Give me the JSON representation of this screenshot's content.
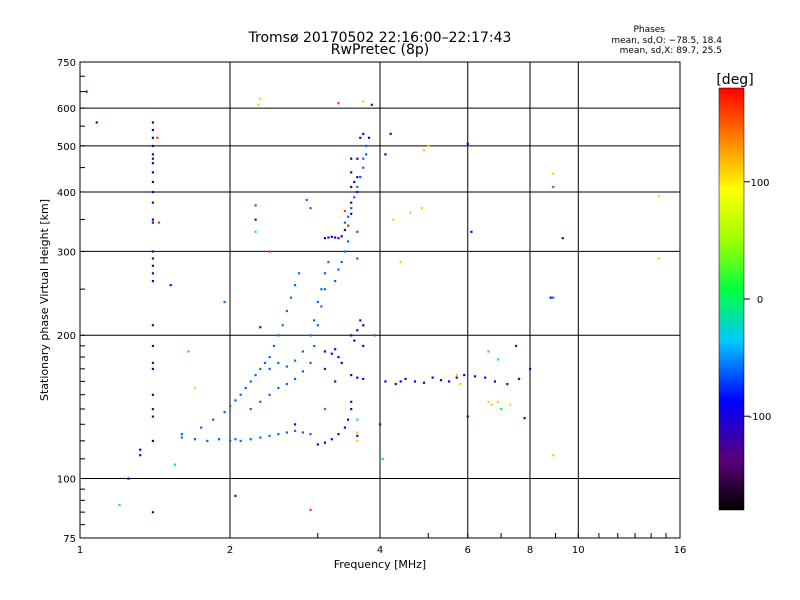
{
  "chart_data": {
    "type": "scatter",
    "title": "Tromsø 20170502 22:16:00–22:17:43",
    "subtitle": "RwPretec (8p)",
    "xlabel": "Frequency [MHz]",
    "ylabel": "Stationary phase Virtual Height [km]",
    "x_scale": "log",
    "y_scale": "log",
    "xlim": [
      1,
      16
    ],
    "ylim": [
      75,
      750
    ],
    "x_ticks": [
      1,
      2,
      4,
      6,
      8,
      10,
      16
    ],
    "y_ticks": [
      75,
      100,
      200,
      300,
      400,
      500,
      600,
      750
    ],
    "grid": true,
    "stats_block": {
      "heading": "Phases",
      "line1": "mean, sd,O: −78.5, 18.4",
      "line2": "mean, sd,X:  89.7, 25.5"
    },
    "colorbar": {
      "label": "[deg]",
      "range": [
        -180,
        180
      ],
      "ticks": [
        100,
        0,
        -100
      ]
    },
    "series": [
      {
        "description_color": "blue traces (O-mode, ~-100 deg)",
        "phase": -100,
        "points": [
          [
            1.4,
            560
          ],
          [
            1.4,
            540
          ],
          [
            1.4,
            520
          ],
          [
            1.4,
            500
          ],
          [
            1.4,
            480
          ],
          [
            1.4,
            460
          ],
          [
            1.4,
            440
          ],
          [
            1.4,
            420
          ],
          [
            1.4,
            400
          ],
          [
            1.4,
            380
          ],
          [
            1.4,
            350
          ],
          [
            1.4,
            300
          ],
          [
            1.4,
            280
          ],
          [
            1.4,
            260
          ],
          [
            1.4,
            210
          ],
          [
            1.4,
            190
          ],
          [
            1.4,
            170
          ],
          [
            1.4,
            150
          ],
          [
            1.4,
            135
          ],
          [
            1.4,
            120
          ],
          [
            1.4,
            85
          ],
          [
            1.03,
            650
          ],
          [
            1.08,
            560
          ],
          [
            1.25,
            100
          ],
          [
            1.32,
            115
          ],
          [
            1.32,
            112
          ],
          [
            1.52,
            255
          ],
          [
            3.0,
            118
          ],
          [
            3.1,
            119
          ],
          [
            3.2,
            121
          ],
          [
            3.3,
            124
          ],
          [
            3.4,
            128
          ],
          [
            3.45,
            133
          ],
          [
            3.5,
            140
          ],
          [
            3.1,
            320
          ],
          [
            3.15,
            321
          ],
          [
            3.2,
            322
          ],
          [
            3.25,
            321
          ],
          [
            3.3,
            320
          ],
          [
            3.35,
            323
          ],
          [
            3.4,
            333
          ],
          [
            3.45,
            340
          ],
          [
            3.5,
            380
          ],
          [
            3.5,
            360
          ],
          [
            3.5,
            410
          ],
          [
            3.5,
            440
          ],
          [
            3.5,
            470
          ],
          [
            3.55,
            420
          ],
          [
            3.6,
            400
          ],
          [
            3.6,
            430
          ],
          [
            3.6,
            470
          ],
          [
            3.65,
            520
          ],
          [
            3.7,
            530
          ],
          [
            3.5,
            200
          ],
          [
            3.55,
            195
          ],
          [
            3.6,
            205
          ],
          [
            3.65,
            215
          ],
          [
            3.7,
            210
          ],
          [
            3.7,
            190
          ],
          [
            3.1,
            185
          ],
          [
            3.2,
            183
          ],
          [
            3.25,
            187
          ],
          [
            3.3,
            180
          ],
          [
            3.35,
            175
          ],
          [
            3.5,
            165
          ],
          [
            3.6,
            163
          ],
          [
            3.7,
            162
          ],
          [
            4.1,
            160
          ],
          [
            4.3,
            158
          ],
          [
            4.5,
            162
          ],
          [
            4.7,
            160
          ],
          [
            4.9,
            159
          ],
          [
            5.1,
            163
          ],
          [
            5.3,
            161
          ],
          [
            5.5,
            160
          ],
          [
            5.7,
            163
          ],
          [
            5.9,
            165
          ],
          [
            6.2,
            164
          ],
          [
            6.5,
            163
          ],
          [
            6.8,
            160
          ],
          [
            7.2,
            158
          ],
          [
            7.6,
            162
          ],
          [
            8.0,
            170
          ],
          [
            4.2,
            530
          ],
          [
            4.1,
            480
          ],
          [
            6.0,
            505
          ],
          [
            6.1,
            330
          ],
          [
            9.3,
            320
          ],
          [
            8.8,
            240
          ],
          [
            7.8,
            134
          ],
          [
            3.8,
            520
          ],
          [
            4.4,
            160
          ]
        ]
      },
      {
        "description_color": "light-blue traces (~-60 deg)",
        "phase": -60,
        "points": [
          [
            1.6,
            122
          ],
          [
            1.7,
            121
          ],
          [
            1.8,
            120
          ],
          [
            1.9,
            121
          ],
          [
            2.0,
            120
          ],
          [
            2.05,
            121
          ],
          [
            2.1,
            120
          ],
          [
            2.2,
            121
          ],
          [
            2.3,
            122
          ],
          [
            2.4,
            123
          ],
          [
            2.5,
            124
          ],
          [
            2.6,
            125
          ],
          [
            2.7,
            126
          ],
          [
            2.8,
            125
          ],
          [
            2.9,
            124
          ],
          [
            1.6,
            124
          ],
          [
            1.75,
            128
          ],
          [
            1.85,
            133
          ],
          [
            1.95,
            138
          ],
          [
            2.0,
            142
          ],
          [
            2.05,
            146
          ],
          [
            2.1,
            150
          ],
          [
            2.15,
            155
          ],
          [
            2.2,
            160
          ],
          [
            2.25,
            165
          ],
          [
            2.3,
            170
          ],
          [
            2.35,
            175
          ],
          [
            2.4,
            180
          ],
          [
            2.45,
            190
          ],
          [
            2.5,
            200
          ],
          [
            2.55,
            210
          ],
          [
            2.6,
            225
          ],
          [
            2.65,
            240
          ],
          [
            2.7,
            255
          ],
          [
            2.75,
            270
          ],
          [
            2.2,
            140
          ],
          [
            2.3,
            145
          ],
          [
            2.4,
            150
          ],
          [
            2.5,
            155
          ],
          [
            2.6,
            158
          ],
          [
            2.7,
            162
          ],
          [
            2.8,
            168
          ],
          [
            2.9,
            175
          ],
          [
            2.95,
            190
          ],
          [
            3.0,
            210
          ],
          [
            3.05,
            230
          ],
          [
            3.1,
            250
          ],
          [
            2.4,
            170
          ],
          [
            2.5,
            175
          ],
          [
            2.6,
            172
          ],
          [
            2.7,
            177
          ],
          [
            2.8,
            185
          ],
          [
            2.9,
            200
          ],
          [
            2.95,
            215
          ],
          [
            3.0,
            235
          ],
          [
            3.05,
            250
          ],
          [
            3.1,
            270
          ],
          [
            3.15,
            285
          ],
          [
            3.25,
            260
          ],
          [
            3.3,
            275
          ],
          [
            3.35,
            285
          ],
          [
            3.4,
            300
          ],
          [
            3.45,
            315
          ],
          [
            3.4,
            345
          ],
          [
            3.45,
            355
          ],
          [
            3.5,
            370
          ],
          [
            3.55,
            390
          ],
          [
            3.6,
            410
          ],
          [
            3.65,
            430
          ],
          [
            3.7,
            450
          ],
          [
            3.7,
            470
          ],
          [
            3.75,
            480
          ],
          [
            3.75,
            500
          ],
          [
            2.85,
            385
          ],
          [
            2.9,
            370
          ],
          [
            2.25,
            375
          ],
          [
            1.95,
            235
          ],
          [
            3.6,
            330
          ],
          [
            3.6,
            290
          ],
          [
            8.9,
            240
          ],
          [
            3.9,
            200
          ]
        ]
      },
      {
        "description_color": "navy / purple specks (~-130 deg)",
        "phase": -130,
        "points": [
          [
            1.4,
            470
          ],
          [
            1.4,
            345
          ],
          [
            1.4,
            290
          ],
          [
            1.4,
            270
          ],
          [
            1.4,
            175
          ],
          [
            1.4,
            140
          ],
          [
            2.05,
            92
          ],
          [
            2.25,
            350
          ],
          [
            2.3,
            208
          ],
          [
            2.7,
            130
          ],
          [
            3.1,
            170
          ],
          [
            3.25,
            160
          ],
          [
            3.5,
            145
          ],
          [
            3.6,
            123
          ],
          [
            3.85,
            610
          ],
          [
            4.0,
            130
          ],
          [
            6.0,
            135
          ],
          [
            7.5,
            190
          ]
        ]
      },
      {
        "description_color": "green specks (~0 deg)",
        "phase": 0,
        "points": [
          [
            1.2,
            88
          ],
          [
            1.55,
            107
          ],
          [
            1.65,
            185
          ],
          [
            4.05,
            110
          ],
          [
            3.6,
            133
          ],
          [
            6.6,
            185
          ],
          [
            6.9,
            178
          ],
          [
            7.0,
            140
          ],
          [
            2.25,
            330
          ]
        ]
      },
      {
        "description_color": "yellow specks (~110 deg)",
        "phase": 110,
        "points": [
          [
            2.3,
            628
          ],
          [
            2.28,
            610
          ],
          [
            3.6,
            120
          ],
          [
            3.6,
            125
          ],
          [
            4.25,
            350
          ],
          [
            4.6,
            362
          ],
          [
            4.85,
            370
          ],
          [
            4.9,
            490
          ],
          [
            5.0,
            500
          ],
          [
            5.7,
            165
          ],
          [
            5.8,
            158
          ],
          [
            6.6,
            145
          ],
          [
            6.7,
            143
          ],
          [
            6.9,
            145
          ],
          [
            7.3,
            143
          ],
          [
            8.9,
            112
          ],
          [
            8.9,
            437
          ],
          [
            14.5,
            392
          ],
          [
            14.5,
            290
          ],
          [
            4.4,
            285
          ],
          [
            3.7,
            620
          ],
          [
            1.7,
            155
          ]
        ]
      },
      {
        "description_color": "orange / red specks (~160 deg)",
        "phase": 160,
        "points": [
          [
            1.43,
            520
          ],
          [
            1.44,
            345
          ],
          [
            3.4,
            365
          ],
          [
            3.45,
            340
          ],
          [
            8.9,
            410
          ],
          [
            2.9,
            86
          ],
          [
            3.3,
            615
          ],
          [
            3.1,
            140
          ],
          [
            2.4,
            300
          ]
        ]
      }
    ]
  }
}
